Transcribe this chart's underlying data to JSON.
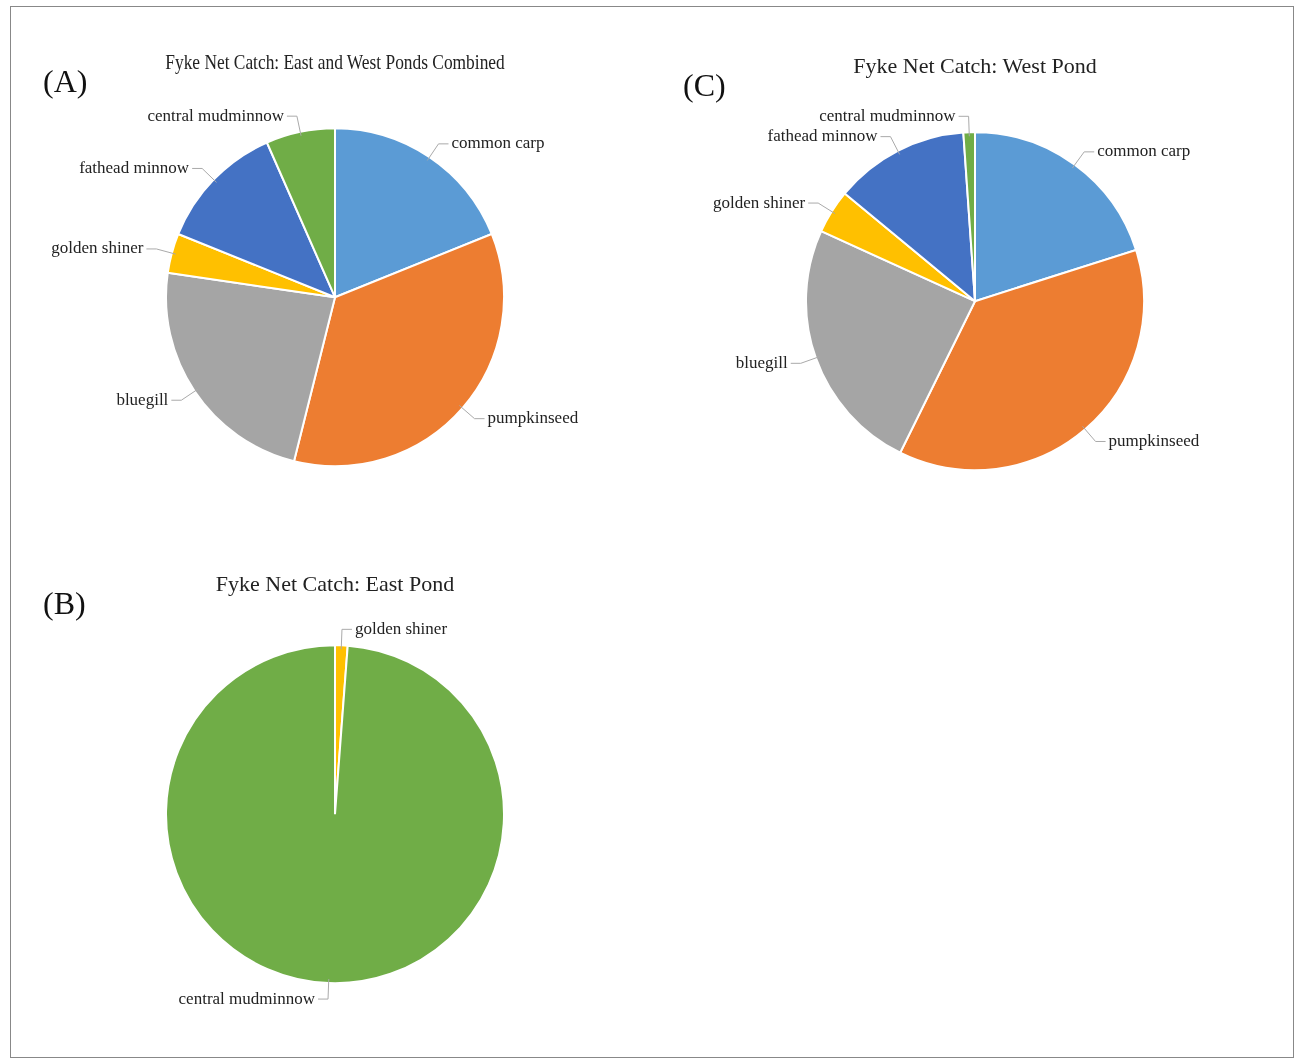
{
  "chart_data": [
    {
      "type": "pie",
      "title": "Fyke Net Catch: East and West Ponds Combined",
      "annotations": [
        "(A)"
      ],
      "legend": false,
      "categories": [
        "common carp",
        "pumpkinseed",
        "bluegill",
        "golden shiner",
        "fathead minnow",
        "central mudminnow"
      ],
      "values": [
        18.9,
        35.0,
        23.4,
        3.8,
        12.3,
        6.6
      ],
      "colors": [
        "#5b9bd5",
        "#ed7d31",
        "#a5a5a5",
        "#ffc000",
        "#4472c4",
        "#70ad47"
      ]
    },
    {
      "type": "pie",
      "title": "Fyke Net Catch: West Pond",
      "annotations": [
        "(C)"
      ],
      "legend": false,
      "categories": [
        "common carp",
        "pumpkinseed",
        "bluegill",
        "golden shiner",
        "fathead minnow",
        "central mudminnow"
      ],
      "values": [
        20.1,
        37.2,
        24.5,
        4.2,
        12.9,
        1.1
      ],
      "colors": [
        "#5b9bd5",
        "#ed7d31",
        "#a5a5a5",
        "#ffc000",
        "#4472c4",
        "#70ad47"
      ]
    },
    {
      "type": "pie",
      "title": "Fyke Net Catch: East Pond",
      "annotations": [
        "(B)"
      ],
      "legend": false,
      "categories": [
        "golden shiner",
        "central mudminnow"
      ],
      "values": [
        1.2,
        98.8
      ],
      "colors": [
        "#ffc000",
        "#70ad47"
      ]
    }
  ]
}
